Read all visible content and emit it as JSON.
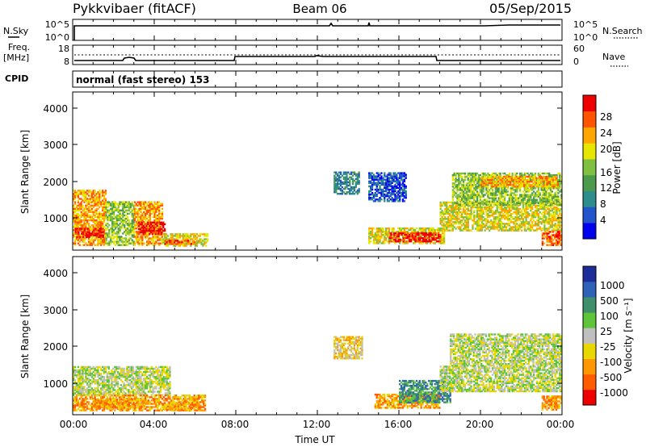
{
  "header": {
    "title": "Pykkvibaer (fitACF)",
    "beam": "Beam 06",
    "date": "05/Sep/2015"
  },
  "top_panels": {
    "nsky_label": "N.Sky",
    "nsky_ticks": [
      "10^5",
      "10^0"
    ],
    "nsearch_label": "N.Search",
    "nsearch_ticks": [
      "10^5",
      "10^0"
    ],
    "freq_label_1": "Freq.",
    "freq_label_2": "[MHz]",
    "freq_ticks": [
      "18",
      "8"
    ],
    "nave_label": "Nave",
    "nave_ticks": [
      "60",
      "0"
    ],
    "cpid_label": "CPID",
    "cpid_text": "normal (fast stereo) 153"
  },
  "x_axis": {
    "label": "Time UT",
    "ticks": [
      "00:00",
      "04:00",
      "08:00",
      "12:00",
      "16:00",
      "20:00",
      "00:00"
    ]
  },
  "power_panel": {
    "ylabel": "Slant Range [km]",
    "yticks": [
      "4000",
      "3000",
      "2000",
      "1000"
    ],
    "colorbar_label": "Power [dB]",
    "colorbar_ticks": [
      "28",
      "24",
      "20",
      "16",
      "12",
      "8",
      "4"
    ],
    "colors": [
      "#0000ee",
      "#2255cc",
      "#2d8c8c",
      "#4c9a4c",
      "#80c040",
      "#e6e600",
      "#ffa500",
      "#ff5500",
      "#ee0000"
    ]
  },
  "velocity_panel": {
    "ylabel": "Slant Range [km]",
    "yticks": [
      "4000",
      "3000",
      "2000",
      "1000"
    ],
    "colorbar_label": "Velocity [m s⁻¹]",
    "colorbar_ticks": [
      "1000",
      "500",
      "100",
      "25",
      "-25",
      "-100",
      "-500",
      "-1000"
    ],
    "colors": [
      "#1c2d99",
      "#2e62b8",
      "#3e8f6a",
      "#5ec43a",
      "#bfbfbf",
      "#e8d800",
      "#ff9800",
      "#ff5c00",
      "#ee0000"
    ]
  },
  "chart_data": [
    {
      "type": "line",
      "title": "N.Sky / N.Search",
      "x_range_hours": [
        0,
        24
      ],
      "series": [
        {
          "name": "N.Sky",
          "x": [
            0,
            0.2,
            4,
            8,
            12,
            13,
            16,
            20,
            24
          ],
          "values": [
            1,
            3000,
            3000,
            3000,
            3000,
            3500,
            3000,
            3200,
            3200
          ]
        }
      ]
    },
    {
      "type": "line",
      "title": "Freq. [MHz] / Nave",
      "x_range_hours": [
        0,
        24
      ],
      "series": [
        {
          "name": "Freq.",
          "x": [
            0,
            2.2,
            2.5,
            2.9,
            3.0,
            7.0,
            7.0,
            12,
            17.9,
            18.0,
            24
          ],
          "values": [
            9,
            9.6,
            9.8,
            9.6,
            9,
            9,
            10.8,
            10.9,
            10.9,
            9,
            9
          ]
        }
      ]
    },
    {
      "type": "heatmap",
      "title": "Power [dB]",
      "xlabel": "Time UT",
      "ylabel": "Slant Range [km]",
      "x_range_hours": [
        0,
        24
      ],
      "ylim": [
        180,
        4500
      ],
      "colorbar": [
        4,
        8,
        12,
        16,
        20,
        24,
        28
      ],
      "regions": [
        {
          "t0": 0.0,
          "t1": 1.6,
          "r0": 300,
          "r1": 1800,
          "level": 6
        },
        {
          "t0": 0.1,
          "t1": 1.5,
          "r0": 520,
          "r1": 760,
          "level": 8
        },
        {
          "t0": 1.6,
          "t1": 3.0,
          "r0": 300,
          "r1": 1500,
          "level": 4
        },
        {
          "t0": 3.0,
          "t1": 4.4,
          "r0": 300,
          "r1": 1500,
          "level": 6
        },
        {
          "t0": 3.2,
          "t1": 4.5,
          "r0": 600,
          "r1": 950,
          "level": 8
        },
        {
          "t0": 4.4,
          "t1": 6.6,
          "r0": 280,
          "r1": 600,
          "level": 5
        },
        {
          "t0": 4.5,
          "t1": 6.0,
          "r0": 330,
          "r1": 450,
          "level": 7
        },
        {
          "t0": 12.8,
          "t1": 14.0,
          "r0": 1700,
          "r1": 2300,
          "level": 2
        },
        {
          "t0": 14.5,
          "t1": 16.3,
          "r0": 1500,
          "r1": 2300,
          "level": 1
        },
        {
          "t0": 14.5,
          "t1": 18.2,
          "r0": 350,
          "r1": 800,
          "level": 5
        },
        {
          "t0": 15.5,
          "t1": 18.0,
          "r0": 400,
          "r1": 650,
          "level": 8
        },
        {
          "t0": 18.0,
          "t1": 24.0,
          "r0": 700,
          "r1": 1500,
          "level": 5
        },
        {
          "t0": 18.6,
          "t1": 24.0,
          "r0": 1400,
          "r1": 2300,
          "level": 4
        },
        {
          "t0": 20.0,
          "t1": 23.8,
          "r0": 1900,
          "r1": 2200,
          "level": 6
        },
        {
          "t0": 23.0,
          "t1": 24.0,
          "r0": 300,
          "r1": 700,
          "level": 7
        }
      ]
    },
    {
      "type": "heatmap",
      "title": "Velocity [m s-1]",
      "xlabel": "Time UT",
      "ylabel": "Slant Range [km]",
      "x_range_hours": [
        0,
        24
      ],
      "ylim": [
        180,
        4500
      ],
      "colorbar": [
        1000,
        500,
        100,
        25,
        -25,
        -100,
        -500,
        -1000
      ],
      "regions": [
        {
          "t0": 0.0,
          "t1": 4.8,
          "r0": 700,
          "r1": 1500,
          "level": 4
        },
        {
          "t0": 0.0,
          "t1": 6.5,
          "r0": 280,
          "r1": 700,
          "level": 6
        },
        {
          "t0": 1.0,
          "t1": 3.5,
          "r0": 350,
          "r1": 600,
          "level": 6
        },
        {
          "t0": 4.4,
          "t1": 6.0,
          "r0": 300,
          "r1": 500,
          "level": 6
        },
        {
          "t0": 12.8,
          "t1": 14.2,
          "r0": 1700,
          "r1": 2300,
          "level": 5
        },
        {
          "t0": 14.8,
          "t1": 18.0,
          "r0": 350,
          "r1": 750,
          "level": 6
        },
        {
          "t0": 16.0,
          "t1": 18.5,
          "r0": 500,
          "r1": 1100,
          "level": 2
        },
        {
          "t0": 18.0,
          "t1": 24.0,
          "r0": 800,
          "r1": 1500,
          "level": 4
        },
        {
          "t0": 18.5,
          "t1": 24.0,
          "r0": 1500,
          "r1": 2400,
          "level": 4
        },
        {
          "t0": 23.0,
          "t1": 24.0,
          "r0": 300,
          "r1": 700,
          "level": 6
        }
      ]
    }
  ]
}
